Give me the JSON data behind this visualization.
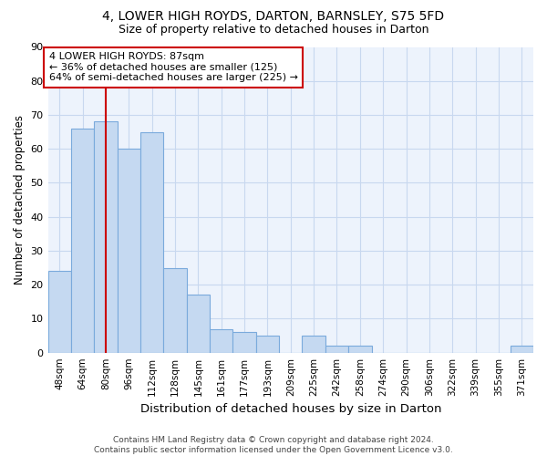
{
  "title1": "4, LOWER HIGH ROYDS, DARTON, BARNSLEY, S75 5FD",
  "title2": "Size of property relative to detached houses in Darton",
  "xlabel": "Distribution of detached houses by size in Darton",
  "ylabel": "Number of detached properties",
  "footer": "Contains HM Land Registry data © Crown copyright and database right 2024.\nContains public sector information licensed under the Open Government Licence v3.0.",
  "categories": [
    "48sqm",
    "64sqm",
    "80sqm",
    "96sqm",
    "112sqm",
    "128sqm",
    "145sqm",
    "161sqm",
    "177sqm",
    "193sqm",
    "209sqm",
    "225sqm",
    "242sqm",
    "258sqm",
    "274sqm",
    "290sqm",
    "306sqm",
    "322sqm",
    "339sqm",
    "355sqm",
    "371sqm"
  ],
  "values": [
    24,
    66,
    68,
    60,
    65,
    25,
    17,
    7,
    6,
    5,
    0,
    5,
    2,
    2,
    0,
    0,
    0,
    0,
    0,
    0,
    2
  ],
  "bar_color": "#c5d9f1",
  "bar_edge_color": "#7aaadc",
  "vline_bar_index": 2,
  "box_text": "4 LOWER HIGH ROYDS: 87sqm\n← 36% of detached houses are smaller (125)\n64% of semi-detached houses are larger (225) →",
  "box_color": "#cc0000",
  "ylim_max": 90,
  "yticks": [
    0,
    10,
    20,
    30,
    40,
    50,
    60,
    70,
    80,
    90
  ],
  "bg_color": "#edf3fc",
  "grid_color": "#c8d8ef"
}
